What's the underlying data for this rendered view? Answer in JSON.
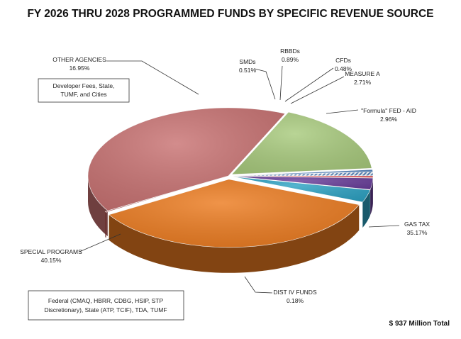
{
  "chart_data": {
    "type": "pie",
    "title": "FY 2026 THRU 2028 PROGRAMMED FUNDS BY SPECIFIC REVENUE SOURCE",
    "total_label": "$ 937 Million Total",
    "slices": [
      {
        "name": "GAS TAX",
        "value": 35.17,
        "label": "35.17%",
        "color": "#ec7c21"
      },
      {
        "name": "DIST IV FUNDS",
        "value": 0.18,
        "label": "0.18%",
        "color": "#c0504d"
      },
      {
        "name": "SPECIAL PROGRAMS",
        "value": 40.15,
        "label": "40.15%",
        "color": "#c97373"
      },
      {
        "name": "OTHER AGENCIES",
        "value": 16.95,
        "label": "16.95%",
        "color": "#a9cb7e"
      },
      {
        "name": "SMDs",
        "value": 0.51,
        "label": "0.51%",
        "color": "#4f81bd"
      },
      {
        "name": "RBBDs",
        "value": 0.89,
        "label": "0.89%",
        "color": "#c6d9f1"
      },
      {
        "name": "CFDs",
        "value": 0.48,
        "label": "0.48%",
        "color": "#e65a5a"
      },
      {
        "name": "MEASURE A",
        "value": 2.71,
        "label": "2.71%",
        "color": "#6a3f9b"
      },
      {
        "name": "\"Formula\" FED - AID",
        "value": 2.96,
        "label": "2.96%",
        "color": "#2ea3c4"
      }
    ],
    "notes": {
      "other_agencies": [
        "Developer Fees, State,",
        "TUMF, and Cities"
      ],
      "special_programs": [
        "Federal (CMAQ, HBRR, CDBG, HSIP, STP",
        "Discretionary), State (ATP, TCIF), TDA, TUMF"
      ]
    }
  }
}
